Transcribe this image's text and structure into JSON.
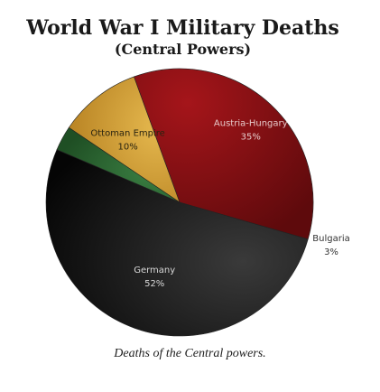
{
  "chart_data": {
    "type": "pie",
    "title": "World War I Military Deaths",
    "subtitle": "(Central Powers)",
    "categories": [
      "Austria-Hungary",
      "Ottoman Empire",
      "Bulgaria",
      "Germany"
    ],
    "values": [
      35,
      10,
      3,
      52
    ],
    "value_labels": [
      "35%",
      "10%",
      "3%",
      "52%"
    ],
    "colors": [
      "#8b0f12",
      "#d6a43a",
      "#2e6b34",
      "#1c1c1c"
    ],
    "label_colors": [
      "#e6c9c9",
      "#2a2410",
      "#333333",
      "#d8d8d8"
    ],
    "legend": "none"
  },
  "caption": "Deaths of the Central powers."
}
